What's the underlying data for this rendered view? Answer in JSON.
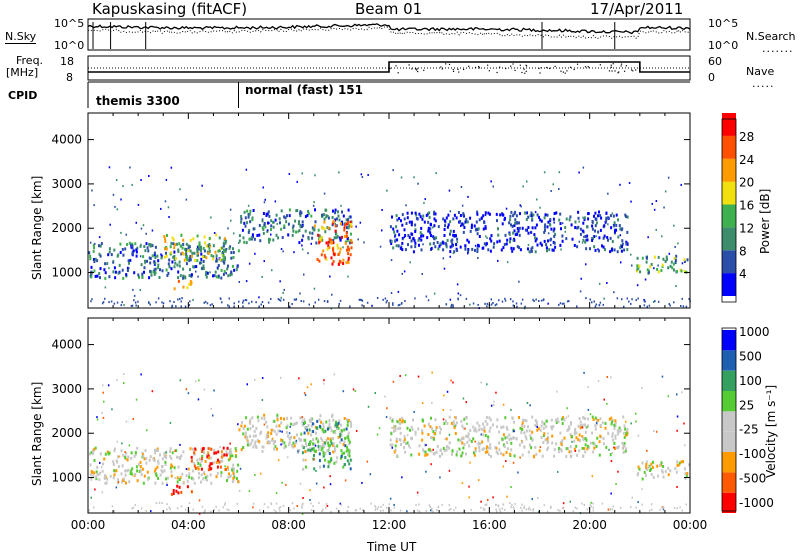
{
  "header": {
    "station": "Kapuskasing (fitACF)",
    "beam": "Beam 01",
    "date": "17/Apr/2011"
  },
  "top_panel": {
    "left_label": "N.Sky",
    "right_label": "N.Search",
    "left_ticks": [
      "10^5",
      "10^0"
    ],
    "right_ticks": [
      "10^5",
      "10^0"
    ]
  },
  "freq_panel": {
    "left_label_1": "Freq.",
    "left_label_2": "[MHz]",
    "right_label": "Nave",
    "left_ticks": [
      "18",
      "8"
    ],
    "right_ticks": [
      "60",
      "0"
    ]
  },
  "cpid": {
    "label": "CPID",
    "segments": [
      "themis 3300",
      "normal (fast) 151"
    ]
  },
  "colors": {
    "power": [
      "#0000ff",
      "#2b4ea8",
      "#3d8c6b",
      "#3fb04f",
      "#f0e010",
      "#ff9a00",
      "#ff5000",
      "#ff0000"
    ],
    "velocity": [
      "#ff0000",
      "#ff5a00",
      "#ff9a00",
      "#c8c8c8",
      "#c8c8c8",
      "#55cc33",
      "#33a060",
      "#1f5fb0",
      "#0000ff"
    ]
  },
  "chart_data": [
    {
      "type": "heatmap",
      "quantity": "Power",
      "ylabel": "Slant Range [km]",
      "yticks": [
        1000,
        2000,
        3000,
        4000
      ],
      "ylim": [
        200,
        4600
      ],
      "xlim_hours": [
        0,
        24
      ],
      "colorbar": {
        "label": "Power [dB]",
        "ticks": [
          "4",
          "8",
          "12",
          "16",
          "20",
          "24",
          "28"
        ],
        "range": [
          0,
          32
        ]
      },
      "features": [
        {
          "t0": 0.0,
          "t1": 6.0,
          "r0": 900,
          "r1": 1700,
          "level": 2
        },
        {
          "t0": 3.0,
          "t1": 5.5,
          "r0": 1300,
          "r1": 1900,
          "level": 4
        },
        {
          "t0": 3.4,
          "t1": 4.1,
          "r0": 650,
          "r1": 850,
          "level": 5
        },
        {
          "t0": 6.0,
          "t1": 10.5,
          "r0": 1700,
          "r1": 2450,
          "level": 2
        },
        {
          "t0": 9.0,
          "t1": 10.5,
          "r0": 1200,
          "r1": 2200,
          "level": 6
        },
        {
          "t0": 12.0,
          "t1": 21.5,
          "r0": 1500,
          "r1": 2400,
          "level": 1
        },
        {
          "t0": 21.8,
          "t1": 24.0,
          "r0": 1000,
          "r1": 1400,
          "level": 3
        }
      ]
    },
    {
      "type": "heatmap",
      "quantity": "Velocity",
      "ylabel": "Slant Range [km]",
      "xlabel": "Time UT",
      "yticks": [
        1000,
        2000,
        3000,
        4000
      ],
      "ylim": [
        200,
        4600
      ],
      "xlim_hours": [
        0,
        24
      ],
      "xticks": [
        "00:00",
        "04:00",
        "08:00",
        "12:00",
        "16:00",
        "20:00",
        "00:00"
      ],
      "colorbar": {
        "label": "Velocity [m s⁻¹]",
        "ticks": [
          "1000",
          "500",
          "100",
          "25",
          "-25",
          "-100",
          "-500",
          "-1000"
        ]
      },
      "features": [
        {
          "t0": 0.0,
          "t1": 6.0,
          "r0": 900,
          "r1": 1700,
          "level": 4
        },
        {
          "t0": 4.0,
          "t1": 5.6,
          "r0": 1200,
          "r1": 1700,
          "level": 1
        },
        {
          "t0": 3.3,
          "t1": 4.2,
          "r0": 650,
          "r1": 850,
          "level": 1
        },
        {
          "t0": 6.0,
          "t1": 10.5,
          "r0": 1600,
          "r1": 2450,
          "level": 4
        },
        {
          "t0": 8.5,
          "t1": 10.5,
          "r0": 1200,
          "r1": 2300,
          "level": 6
        },
        {
          "t0": 12.0,
          "t1": 21.5,
          "r0": 1500,
          "r1": 2400,
          "level": 4
        },
        {
          "t0": 21.8,
          "t1": 24.0,
          "r0": 1000,
          "r1": 1400,
          "level": 4
        }
      ]
    }
  ]
}
